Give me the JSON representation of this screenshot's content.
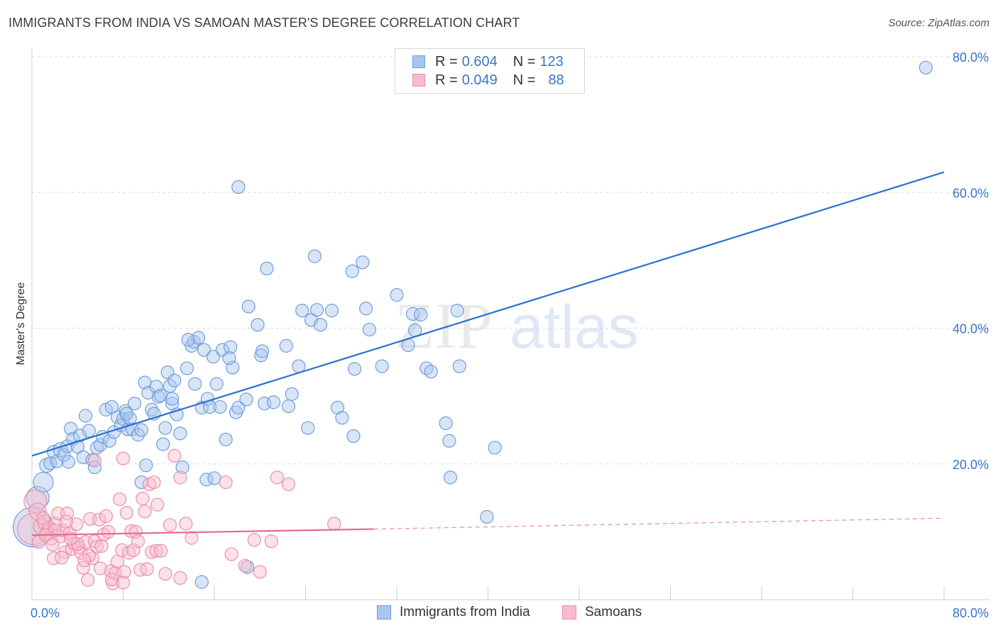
{
  "title": "IMMIGRANTS FROM INDIA VS SAMOAN MASTER'S DEGREE CORRELATION CHART",
  "source": "Source: ZipAtlas.com",
  "watermark": {
    "part1": "ZIP",
    "part2": "atlas"
  },
  "legend": {
    "rows": [
      {
        "r_label": "R =",
        "r_value": "0.604",
        "n_label": "N =",
        "n_value": "123"
      },
      {
        "r_label": "R =",
        "r_value": "0.049",
        "n_label": "N =",
        "n_value": "88"
      }
    ]
  },
  "bottom_legend": [
    "Immigrants from India",
    "Samoans"
  ],
  "colors": {
    "india_fill": "#a9c6ee",
    "india_stroke": "#6f9edc",
    "india_line": "#2c6fd1",
    "samoan_fill": "#f6bccd",
    "samoan_stroke": "#ec8fab",
    "samoan_line": "#e46b93",
    "axis_label": "#3a75c4",
    "grid": "#dddddd"
  },
  "chart_data": {
    "type": "scatter",
    "title": "IMMIGRANTS FROM INDIA VS SAMOAN MASTER'S DEGREE CORRELATION CHART",
    "xlabel": "",
    "ylabel": "Master's Degree",
    "xlim": [
      0,
      80
    ],
    "ylim": [
      0,
      80
    ],
    "x_tick_labels": [
      "0.0%",
      "80.0%"
    ],
    "y_ticks": [
      20,
      40,
      60,
      80
    ],
    "y_tick_labels": [
      "20.0%",
      "40.0%",
      "60.0%",
      "80.0%"
    ],
    "grid": true,
    "legend_position": "top-center",
    "series": [
      {
        "name": "Immigrants from India",
        "r": 0.604,
        "n": 123,
        "trend": {
          "x": [
            0,
            80
          ],
          "y": [
            21.2,
            63.0
          ]
        },
        "points": [
          [
            0.1,
            10.7,
            28
          ],
          [
            0.5,
            15.0,
            16
          ],
          [
            1.0,
            17.3,
            14
          ],
          [
            1.3,
            19.8,
            10
          ],
          [
            1.6,
            20.1,
            9
          ],
          [
            1.9,
            21.8,
            9
          ],
          [
            2.2,
            20.4,
            9
          ],
          [
            2.5,
            22.1,
            10
          ],
          [
            2.8,
            21.3,
            9
          ],
          [
            3.1,
            22.6,
            9
          ],
          [
            3.2,
            20.3,
            9
          ],
          [
            3.4,
            25.2,
            9
          ],
          [
            3.6,
            23.7,
            9
          ],
          [
            4.0,
            22.5,
            9
          ],
          [
            4.2,
            24.2,
            9
          ],
          [
            4.5,
            21.0,
            9
          ],
          [
            4.7,
            27.1,
            9
          ],
          [
            5.0,
            24.9,
            9
          ],
          [
            5.3,
            20.6,
            9
          ],
          [
            5.5,
            19.5,
            9
          ],
          [
            5.7,
            22.4,
            9
          ],
          [
            6.0,
            22.8,
            9
          ],
          [
            6.2,
            24.0,
            9
          ],
          [
            6.5,
            28.0,
            9
          ],
          [
            6.8,
            23.4,
            9
          ],
          [
            7.0,
            28.4,
            9
          ],
          [
            7.2,
            24.7,
            9
          ],
          [
            7.5,
            26.9,
            9
          ],
          [
            7.8,
            25.7,
            9
          ],
          [
            8.0,
            26.6,
            9
          ],
          [
            8.2,
            27.8,
            9
          ],
          [
            8.4,
            25.1,
            9
          ],
          [
            8.6,
            26.7,
            9
          ],
          [
            8.8,
            25.1,
            9
          ],
          [
            9.0,
            28.9,
            9
          ],
          [
            9.3,
            24.3,
            9
          ],
          [
            9.6,
            25.0,
            9
          ],
          [
            9.9,
            32.0,
            9
          ],
          [
            10.0,
            19.8,
            9
          ],
          [
            10.2,
            30.5,
            9
          ],
          [
            10.5,
            28.0,
            9
          ],
          [
            10.7,
            27.4,
            9
          ],
          [
            10.9,
            31.4,
            9
          ],
          [
            11.1,
            29.9,
            9
          ],
          [
            11.3,
            30.1,
            9
          ],
          [
            11.5,
            22.9,
            9
          ],
          [
            11.7,
            25.3,
            9
          ],
          [
            11.9,
            33.5,
            9
          ],
          [
            12.1,
            31.5,
            9
          ],
          [
            12.3,
            28.9,
            9
          ],
          [
            12.5,
            32.3,
            9
          ],
          [
            12.7,
            27.3,
            9
          ],
          [
            13.2,
            19.5,
            9
          ],
          [
            13.6,
            34.1,
            9
          ],
          [
            14.0,
            37.4,
            9
          ],
          [
            14.2,
            38.0,
            9
          ],
          [
            14.3,
            31.8,
            9
          ],
          [
            14.6,
            38.6,
            9
          ],
          [
            14.9,
            28.3,
            9
          ],
          [
            15.1,
            36.8,
            9
          ],
          [
            15.4,
            29.6,
            9
          ],
          [
            15.6,
            28.4,
            9
          ],
          [
            15.9,
            35.8,
            9
          ],
          [
            16.2,
            31.8,
            9
          ],
          [
            16.5,
            28.4,
            9
          ],
          [
            16.7,
            36.8,
            9
          ],
          [
            17.0,
            23.6,
            9
          ],
          [
            17.4,
            37.2,
            9
          ],
          [
            17.6,
            34.2,
            9
          ],
          [
            17.9,
            27.6,
            9
          ],
          [
            18.1,
            28.3,
            9
          ],
          [
            18.8,
            29.5,
            9
          ],
          [
            19.0,
            43.2,
            9
          ],
          [
            19.8,
            40.5,
            9
          ],
          [
            20.1,
            36.0,
            9
          ],
          [
            20.4,
            28.9,
            9
          ],
          [
            20.6,
            48.8,
            9
          ],
          [
            21.2,
            29.1,
            9
          ],
          [
            22.3,
            37.4,
            9
          ],
          [
            22.5,
            28.5,
            9
          ],
          [
            22.8,
            30.3,
            9
          ],
          [
            23.4,
            34.4,
            9
          ],
          [
            23.7,
            42.6,
            9
          ],
          [
            24.2,
            25.3,
            9
          ],
          [
            24.5,
            41.2,
            9
          ],
          [
            24.8,
            50.6,
            9
          ],
          [
            25.0,
            42.7,
            9
          ],
          [
            25.3,
            40.5,
            9
          ],
          [
            26.8,
            28.3,
            9
          ],
          [
            27.2,
            26.8,
            9
          ],
          [
            28.2,
            24.1,
            9
          ],
          [
            28.3,
            34.0,
            9
          ],
          [
            29.0,
            49.7,
            9
          ],
          [
            29.3,
            42.9,
            9
          ],
          [
            29.6,
            39.8,
            9
          ],
          [
            30.7,
            34.4,
            9
          ],
          [
            32.0,
            44.9,
            9
          ],
          [
            33.0,
            37.5,
            9
          ],
          [
            33.4,
            42.1,
            9
          ],
          [
            33.6,
            39.7,
            9
          ],
          [
            34.1,
            42.0,
            9
          ],
          [
            34.6,
            34.1,
            9
          ],
          [
            35.0,
            33.6,
            9
          ],
          [
            36.3,
            26.0,
            9
          ],
          [
            37.3,
            42.6,
            9
          ],
          [
            37.5,
            34.4,
            9
          ],
          [
            36.6,
            23.4,
            9
          ],
          [
            18.1,
            60.8,
            9
          ],
          [
            8.3,
            27.4,
            9
          ],
          [
            9.6,
            17.3,
            9
          ],
          [
            12.3,
            29.6,
            9
          ],
          [
            13.7,
            38.3,
            9
          ],
          [
            15.3,
            17.7,
            9
          ],
          [
            16.0,
            17.9,
            9
          ],
          [
            18.9,
            4.8,
            9
          ],
          [
            39.9,
            12.2,
            9
          ],
          [
            36.7,
            18.0,
            9
          ],
          [
            40.6,
            22.4,
            9
          ],
          [
            78.4,
            78.4,
            9
          ],
          [
            14.9,
            2.6,
            9
          ],
          [
            20.2,
            36.6,
            9
          ],
          [
            26.3,
            42.6,
            9
          ],
          [
            13.0,
            24.5,
            9
          ],
          [
            17.3,
            35.6,
            9
          ],
          [
            28.1,
            48.4,
            9
          ]
        ]
      },
      {
        "name": "Samoans",
        "r": 0.049,
        "n": 88,
        "trend": {
          "x": [
            0,
            30
          ],
          "y": [
            9.5,
            10.4
          ]
        },
        "trend_dashed": {
          "x": [
            30,
            80
          ],
          "y": [
            10.4,
            12.0
          ]
        },
        "points": [
          [
            0.1,
            10.4,
            22
          ],
          [
            0.3,
            14.5,
            16
          ],
          [
            0.5,
            13.0,
            12
          ],
          [
            0.8,
            10.8,
            11
          ],
          [
            1.1,
            11.4,
            10
          ],
          [
            1.3,
            9.7,
            10
          ],
          [
            1.5,
            10.7,
            9
          ],
          [
            1.7,
            9.0,
            9
          ],
          [
            1.9,
            6.1,
            9
          ],
          [
            2.1,
            11.2,
            9
          ],
          [
            2.3,
            12.7,
            9
          ],
          [
            2.5,
            9.3,
            9
          ],
          [
            2.7,
            10.2,
            9
          ],
          [
            2.9,
            7.0,
            9
          ],
          [
            3.1,
            12.7,
            9
          ],
          [
            3.3,
            9.8,
            9
          ],
          [
            3.5,
            7.5,
            9
          ],
          [
            3.7,
            8.3,
            9
          ],
          [
            3.9,
            11.1,
            9
          ],
          [
            4.1,
            7.7,
            9
          ],
          [
            4.3,
            6.9,
            9
          ],
          [
            4.5,
            4.7,
            9
          ],
          [
            4.7,
            8.5,
            9
          ],
          [
            4.9,
            2.9,
            9
          ],
          [
            5.1,
            11.9,
            9
          ],
          [
            5.3,
            6.1,
            9
          ],
          [
            5.5,
            8.6,
            9
          ],
          [
            5.7,
            7.8,
            9
          ],
          [
            5.9,
            11.8,
            9
          ],
          [
            6.1,
            7.9,
            9
          ],
          [
            6.3,
            9.6,
            9
          ],
          [
            6.5,
            12.3,
            9
          ],
          [
            6.7,
            10.0,
            9
          ],
          [
            6.9,
            4.2,
            9
          ],
          [
            7.1,
            2.4,
            9
          ],
          [
            7.3,
            3.9,
            9
          ],
          [
            7.5,
            5.6,
            9
          ],
          [
            7.7,
            14.8,
            9
          ],
          [
            7.9,
            7.3,
            9
          ],
          [
            8.1,
            4.1,
            9
          ],
          [
            8.3,
            12.8,
            9
          ],
          [
            8.5,
            6.9,
            9
          ],
          [
            8.7,
            10.1,
            9
          ],
          [
            8.9,
            7.3,
            9
          ],
          [
            9.1,
            10.0,
            9
          ],
          [
            9.3,
            8.6,
            9
          ],
          [
            9.5,
            4.4,
            9
          ],
          [
            9.7,
            14.9,
            9
          ],
          [
            9.9,
            13.0,
            9
          ],
          [
            10.1,
            4.5,
            9
          ],
          [
            10.3,
            17.0,
            9
          ],
          [
            10.5,
            7.0,
            9
          ],
          [
            10.7,
            17.3,
            9
          ],
          [
            10.9,
            7.2,
            9
          ],
          [
            11.3,
            7.2,
            9
          ],
          [
            11.7,
            3.8,
            9
          ],
          [
            12.1,
            11.0,
            9
          ],
          [
            12.5,
            21.2,
            9
          ],
          [
            13.0,
            18.0,
            9
          ],
          [
            13.5,
            11.2,
            9
          ],
          [
            14.0,
            9.1,
            9
          ],
          [
            17.0,
            17.3,
            9
          ],
          [
            17.5,
            6.7,
            9
          ],
          [
            18.7,
            5.0,
            9
          ],
          [
            19.5,
            8.8,
            9
          ],
          [
            20.0,
            4.1,
            9
          ],
          [
            21.0,
            8.6,
            9
          ],
          [
            21.5,
            18.0,
            9
          ],
          [
            22.5,
            17.0,
            9
          ],
          [
            26.5,
            11.2,
            9
          ],
          [
            8.0,
            20.8,
            9
          ],
          [
            5.5,
            20.5,
            9
          ],
          [
            1.0,
            12.0,
            9
          ],
          [
            2.0,
            10.2,
            9
          ],
          [
            3.0,
            11.5,
            9
          ],
          [
            4.0,
            8.2,
            9
          ],
          [
            5.0,
            6.5,
            9
          ],
          [
            6.0,
            4.6,
            9
          ],
          [
            7.0,
            3.0,
            9
          ],
          [
            8.0,
            2.5,
            9
          ],
          [
            0.6,
            8.5,
            9
          ],
          [
            1.2,
            9.5,
            9
          ],
          [
            1.8,
            8.1,
            9
          ],
          [
            2.6,
            6.2,
            9
          ],
          [
            3.4,
            9.0,
            9
          ],
          [
            4.6,
            5.8,
            9
          ],
          [
            11.0,
            14.0,
            9
          ],
          [
            13.0,
            3.2,
            9
          ]
        ]
      }
    ]
  }
}
